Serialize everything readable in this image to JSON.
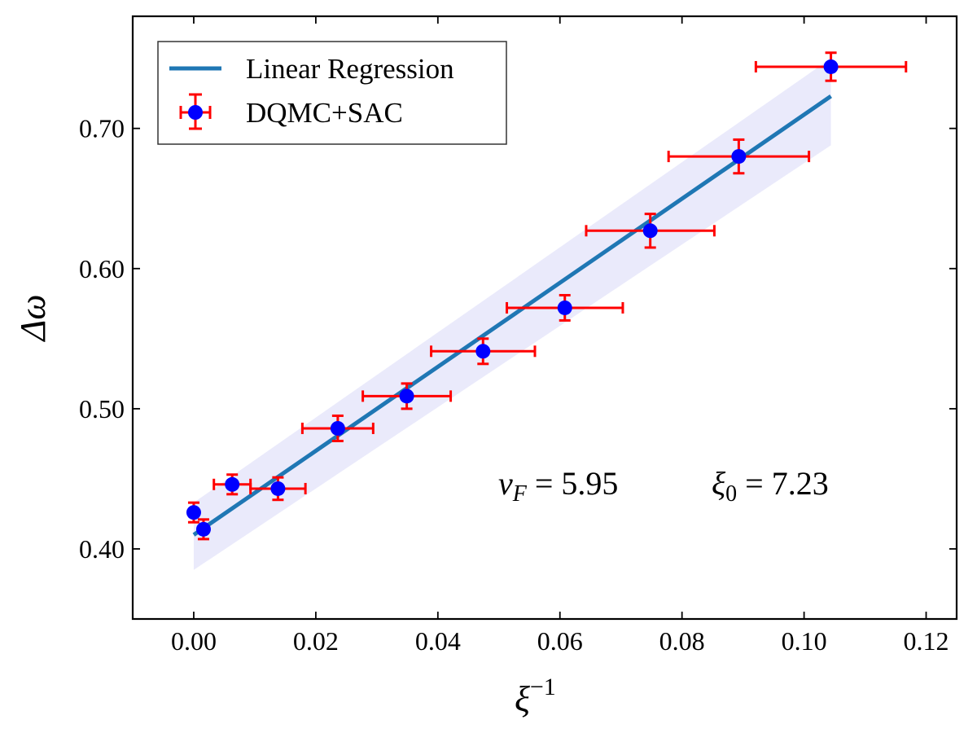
{
  "chart_data": {
    "type": "scatter",
    "title": "",
    "xlabel": "ξ",
    "xlabel_superscript": "−1",
    "ylabel": "Δω",
    "xlim": [
      -0.01,
      0.125
    ],
    "ylim": [
      0.35,
      0.78
    ],
    "xticks": [
      0.0,
      0.02,
      0.04,
      0.06,
      0.08,
      0.1,
      0.12
    ],
    "xtick_labels": [
      "0.00",
      "0.02",
      "0.04",
      "0.06",
      "0.08",
      "0.10",
      "0.12"
    ],
    "yticks": [
      0.4,
      0.5,
      0.6,
      0.7
    ],
    "ytick_labels": [
      "0.40",
      "0.50",
      "0.60",
      "0.70"
    ],
    "grid": false,
    "legend_position": "top-left",
    "series": [
      {
        "name": "DQMC+SAC",
        "kind": "errorbar",
        "color": "#0000ff",
        "errorbar_color": "#ff0000",
        "points": [
          {
            "x": 0.0,
            "y": 0.426,
            "xerr": 0.0,
            "yerr": 0.007
          },
          {
            "x": 0.0016,
            "y": 0.414,
            "xerr": 0.0,
            "yerr": 0.007
          },
          {
            "x": 0.0063,
            "y": 0.446,
            "xerr": 0.003,
            "yerr": 0.007
          },
          {
            "x": 0.0138,
            "y": 0.443,
            "xerr": 0.0045,
            "yerr": 0.008
          },
          {
            "x": 0.0236,
            "y": 0.486,
            "xerr": 0.0058,
            "yerr": 0.009
          },
          {
            "x": 0.0349,
            "y": 0.509,
            "xerr": 0.0072,
            "yerr": 0.009
          },
          {
            "x": 0.0474,
            "y": 0.541,
            "xerr": 0.0085,
            "yerr": 0.009
          },
          {
            "x": 0.0608,
            "y": 0.572,
            "xerr": 0.0095,
            "yerr": 0.009
          },
          {
            "x": 0.0748,
            "y": 0.627,
            "xerr": 0.0105,
            "yerr": 0.012
          },
          {
            "x": 0.0893,
            "y": 0.68,
            "xerr": 0.0115,
            "yerr": 0.012
          },
          {
            "x": 0.1044,
            "y": 0.744,
            "xerr": 0.0123,
            "yerr": 0.01
          }
        ]
      },
      {
        "name": "Linear Regression",
        "kind": "line",
        "color": "#1f77b4",
        "x": [
          0.0,
          0.1044
        ],
        "y": [
          0.41,
          0.723
        ]
      }
    ],
    "confidence_band": {
      "color": "#e6e6fa",
      "x": [
        0.0,
        0.1044
      ],
      "lower": [
        0.385,
        0.688
      ],
      "upper": [
        0.433,
        0.75
      ]
    },
    "annotation": {
      "x": 0.049,
      "y": 0.447,
      "vF_symbol": "v",
      "vF_subscript": "F",
      "vF_value": " = 5.95",
      "xi0_symbol": "ξ",
      "xi0_subscript": "0",
      "xi0_value": " = 7.23"
    }
  }
}
